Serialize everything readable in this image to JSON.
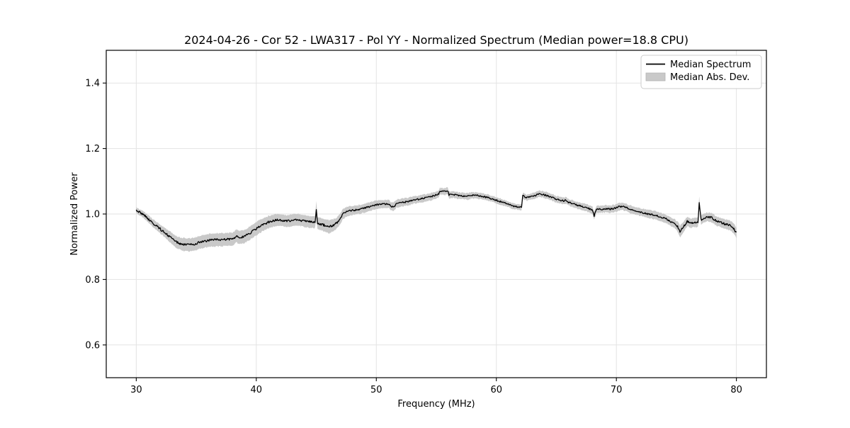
{
  "figure": {
    "background": "#ffffff"
  },
  "chart_data": {
    "type": "line",
    "title": "2024-04-26 - Cor 52 - LWA317 - Pol YY - Normalized Spectrum (Median power=18.8 CPU)",
    "xlabel": "Frequency (MHz)",
    "ylabel": "Normalized Power",
    "xlim": [
      27.5,
      82.5
    ],
    "ylim": [
      0.5,
      1.5
    ],
    "xticks": [
      30,
      40,
      50,
      60,
      70,
      80
    ],
    "xtick_labels": [
      "30",
      "40",
      "50",
      "60",
      "70",
      "80"
    ],
    "yticks": [
      0.6,
      0.8,
      1.0,
      1.2,
      1.4
    ],
    "ytick_labels": [
      "0.6",
      "0.8",
      "1.0",
      "1.2",
      "1.4"
    ],
    "grid": true,
    "legend": {
      "position": "upper right",
      "entries": [
        {
          "label": "Median Spectrum",
          "type": "line",
          "color": "#000000"
        },
        {
          "label": "Median Abs. Dev.",
          "type": "patch",
          "color": "#c9c9c9"
        }
      ]
    },
    "style": {
      "grid_color": "#e3e3e3",
      "spine_color": "#000000",
      "line_color": "#000000",
      "band_color": "#c9c9c9",
      "band_edge_color": "#b3b3b3"
    },
    "series": [
      {
        "name": "Median Spectrum",
        "color": "#000000",
        "x": [
          30.0,
          30.3,
          30.6,
          31.0,
          31.4,
          31.8,
          32.2,
          32.6,
          33.0,
          33.4,
          33.8,
          34.2,
          34.6,
          35.0,
          35.4,
          35.8,
          36.2,
          36.6,
          37.0,
          37.4,
          37.8,
          38.1,
          38.35,
          38.6,
          39.0,
          39.4,
          39.8,
          40.2,
          40.6,
          41.0,
          41.4,
          41.8,
          42.2,
          42.6,
          43.0,
          43.4,
          43.8,
          44.2,
          44.6,
          44.9,
          45.0,
          45.1,
          45.5,
          45.8,
          46.1,
          46.4,
          46.7,
          47.0,
          47.2,
          47.6,
          48.0,
          48.4,
          48.8,
          49.2,
          49.6,
          50.0,
          50.4,
          50.8,
          51.1,
          51.2,
          51.5,
          51.7,
          52.1,
          52.5,
          53.0,
          53.5,
          54.0,
          54.5,
          55.0,
          55.2,
          55.3,
          55.7,
          55.95,
          56.05,
          56.4,
          56.8,
          57.2,
          57.6,
          58.0,
          58.4,
          58.8,
          59.2,
          59.6,
          60.0,
          60.4,
          60.8,
          61.2,
          61.6,
          61.9,
          62.1,
          62.2,
          62.5,
          62.8,
          63.2,
          63.6,
          64.0,
          64.4,
          64.8,
          65.2,
          65.6,
          65.8,
          66.0,
          66.4,
          66.8,
          67.2,
          67.6,
          68.0,
          68.15,
          68.35,
          68.7,
          69.1,
          69.5,
          69.9,
          70.2,
          70.5,
          70.8,
          71.2,
          71.6,
          72.0,
          72.4,
          72.8,
          73.2,
          73.6,
          74.0,
          74.4,
          74.8,
          75.1,
          75.3,
          75.55,
          75.9,
          76.2,
          76.5,
          76.8,
          76.9,
          77.05,
          77.3,
          77.6,
          78.0,
          78.3,
          78.6,
          79.0,
          79.3,
          79.6,
          79.8,
          80.0
        ],
        "y": [
          1.012,
          1.005,
          0.998,
          0.985,
          0.972,
          0.96,
          0.948,
          0.936,
          0.925,
          0.913,
          0.908,
          0.906,
          0.906,
          0.91,
          0.915,
          0.918,
          0.92,
          0.921,
          0.921,
          0.922,
          0.923,
          0.925,
          0.933,
          0.928,
          0.931,
          0.94,
          0.95,
          0.96,
          0.968,
          0.975,
          0.979,
          0.982,
          0.98,
          0.978,
          0.981,
          0.983,
          0.98,
          0.977,
          0.975,
          0.976,
          1.015,
          0.972,
          0.968,
          0.964,
          0.961,
          0.965,
          0.972,
          0.985,
          1.0,
          1.008,
          1.011,
          1.013,
          1.016,
          1.02,
          1.024,
          1.028,
          1.03,
          1.031,
          1.03,
          1.022,
          1.024,
          1.032,
          1.035,
          1.037,
          1.042,
          1.045,
          1.049,
          1.052,
          1.058,
          1.062,
          1.07,
          1.068,
          1.072,
          1.058,
          1.06,
          1.057,
          1.055,
          1.054,
          1.057,
          1.056,
          1.054,
          1.051,
          1.047,
          1.042,
          1.037,
          1.032,
          1.027,
          1.023,
          1.021,
          1.02,
          1.056,
          1.05,
          1.053,
          1.056,
          1.062,
          1.059,
          1.054,
          1.048,
          1.043,
          1.04,
          1.042,
          1.036,
          1.031,
          1.026,
          1.022,
          1.018,
          1.012,
          0.994,
          1.015,
          1.014,
          1.016,
          1.015,
          1.018,
          1.022,
          1.024,
          1.02,
          1.014,
          1.01,
          1.006,
          1.002,
          0.999,
          0.997,
          0.992,
          0.987,
          0.98,
          0.972,
          0.962,
          0.946,
          0.958,
          0.978,
          0.972,
          0.974,
          0.975,
          1.038,
          0.982,
          0.988,
          0.991,
          0.988,
          0.979,
          0.975,
          0.97,
          0.967,
          0.963,
          0.955,
          0.942
        ]
      },
      {
        "name": "Median Abs. Dev.",
        "color": "#c9c9c9",
        "band_x": [
          30,
          31,
          32,
          33,
          34,
          36,
          38,
          40,
          42,
          44,
          44.9,
          45,
          45.1,
          46,
          47,
          48,
          50,
          52,
          54,
          56,
          58,
          60,
          62,
          64,
          66,
          68,
          70,
          72,
          74,
          75,
          75.3,
          76,
          76.8,
          76.9,
          77.05,
          77.5,
          78.5,
          79.5,
          80
        ],
        "band_halfwidth": [
          0.008,
          0.011,
          0.013,
          0.017,
          0.02,
          0.02,
          0.02,
          0.02,
          0.018,
          0.018,
          0.018,
          0.026,
          0.018,
          0.02,
          0.016,
          0.014,
          0.013,
          0.012,
          0.011,
          0.01,
          0.01,
          0.009,
          0.009,
          0.01,
          0.01,
          0.011,
          0.011,
          0.012,
          0.013,
          0.014,
          0.018,
          0.014,
          0.014,
          0.016,
          0.014,
          0.013,
          0.014,
          0.015,
          0.016
        ]
      }
    ]
  }
}
